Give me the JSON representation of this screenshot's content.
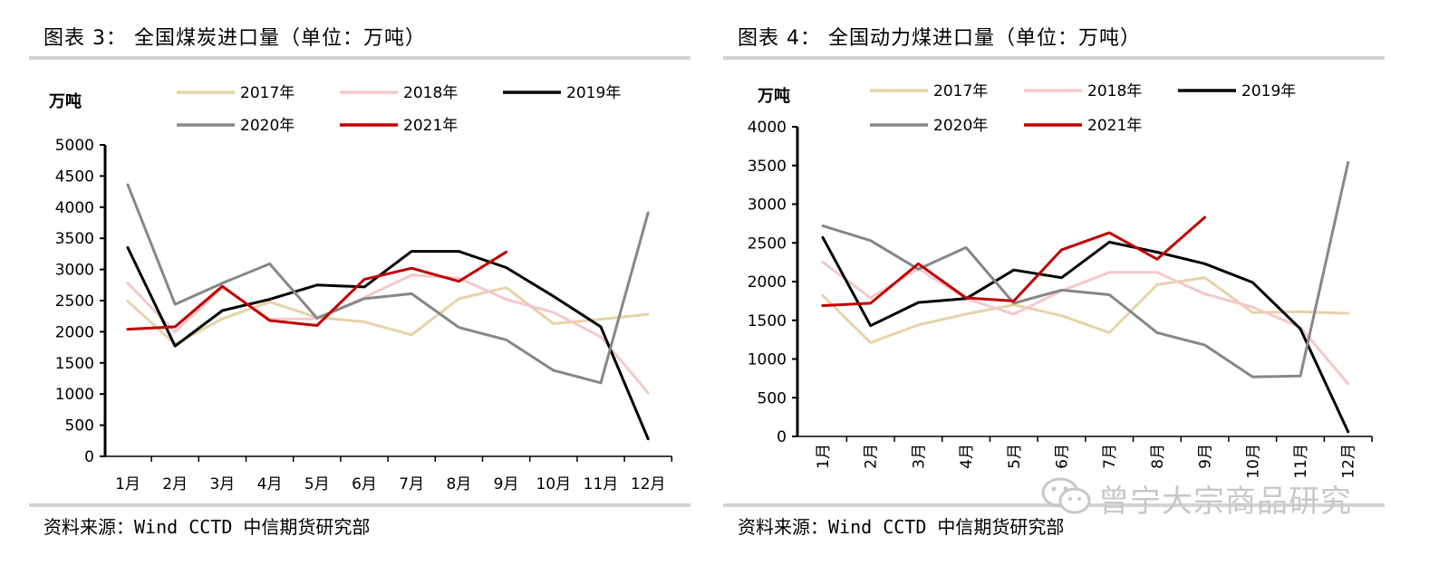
{
  "charts": [
    {
      "title": "图表 3：  全国煤炭进口量（单位：万吨）",
      "source": "资料来源：Wind CCTD 中信期货研究部"
    },
    {
      "title": "图表 4：  全国动力煤进口量（单位：万吨）",
      "source": "资料来源：Wind CCTD 中信期货研究部"
    }
  ],
  "watermark": "曾宁大宗商品研究",
  "chart_data": [
    {
      "type": "line",
      "title": "全国煤炭进口量（单位：万吨）",
      "ylabel": "万吨",
      "ylim": [
        0,
        5000
      ],
      "yticks": [
        0,
        500,
        1000,
        1500,
        2000,
        2500,
        3000,
        3500,
        4000,
        4500,
        5000
      ],
      "categories": [
        "1月",
        "2月",
        "3月",
        "4月",
        "5月",
        "6月",
        "7月",
        "8月",
        "9月",
        "10月",
        "11月",
        "12月"
      ],
      "x_label_rotation": 0,
      "legend_position": "top",
      "grid": false,
      "series": [
        {
          "name": "2017年",
          "color": "#e6d3a8",
          "values": [
            2490,
            1800,
            2210,
            2480,
            2230,
            2160,
            1950,
            2530,
            2710,
            2130,
            2200,
            2280
          ]
        },
        {
          "name": "2018年",
          "color": "#f5c8cb",
          "values": [
            2780,
            2000,
            2710,
            2200,
            2210,
            2550,
            2910,
            2860,
            2520,
            2310,
            1920,
            1020
          ]
        },
        {
          "name": "2019年",
          "color": "#000000",
          "values": [
            3350,
            1770,
            2340,
            2520,
            2750,
            2720,
            3290,
            3290,
            3030,
            2570,
            2080,
            280
          ]
        },
        {
          "name": "2020年",
          "color": "#878787",
          "values": [
            4360,
            2440,
            2780,
            3090,
            2220,
            2530,
            2610,
            2070,
            1870,
            1380,
            1180,
            3910
          ]
        },
        {
          "name": "2021年",
          "color": "#c00000",
          "values": [
            2040,
            2080,
            2730,
            2180,
            2100,
            2840,
            3020,
            2810,
            3280,
            null,
            null,
            null
          ]
        }
      ]
    },
    {
      "type": "line",
      "title": "全国动力煤进口量（单位：万吨）",
      "ylabel": "万吨",
      "ylim": [
        0,
        4000
      ],
      "yticks": [
        0,
        500,
        1000,
        1500,
        2000,
        2500,
        3000,
        3500,
        4000
      ],
      "categories": [
        "1月",
        "2月",
        "3月",
        "4月",
        "5月",
        "6月",
        "7月",
        "8月",
        "9月",
        "10月",
        "11月",
        "12月"
      ],
      "x_label_rotation": -90,
      "legend_position": "top",
      "grid": false,
      "series": [
        {
          "name": "2017年",
          "color": "#e6d3a8",
          "values": [
            1820,
            1210,
            1440,
            1580,
            1700,
            1560,
            1340,
            1960,
            2050,
            1600,
            1610,
            1590
          ]
        },
        {
          "name": "2018年",
          "color": "#f5c8cb",
          "values": [
            2250,
            1790,
            2170,
            1780,
            1580,
            1880,
            2120,
            2120,
            1840,
            1670,
            1410,
            680
          ]
        },
        {
          "name": "2019年",
          "color": "#000000",
          "values": [
            2570,
            1430,
            1730,
            1780,
            2150,
            2050,
            2510,
            2380,
            2230,
            1990,
            1390,
            60
          ]
        },
        {
          "name": "2020年",
          "color": "#878787",
          "values": [
            2720,
            2530,
            2160,
            2440,
            1720,
            1890,
            1830,
            1340,
            1180,
            770,
            780,
            3540
          ]
        },
        {
          "name": "2021年",
          "color": "#c00000",
          "values": [
            1690,
            1720,
            2230,
            1790,
            1750,
            2410,
            2630,
            2290,
            2830,
            null,
            null,
            null
          ]
        }
      ]
    }
  ]
}
